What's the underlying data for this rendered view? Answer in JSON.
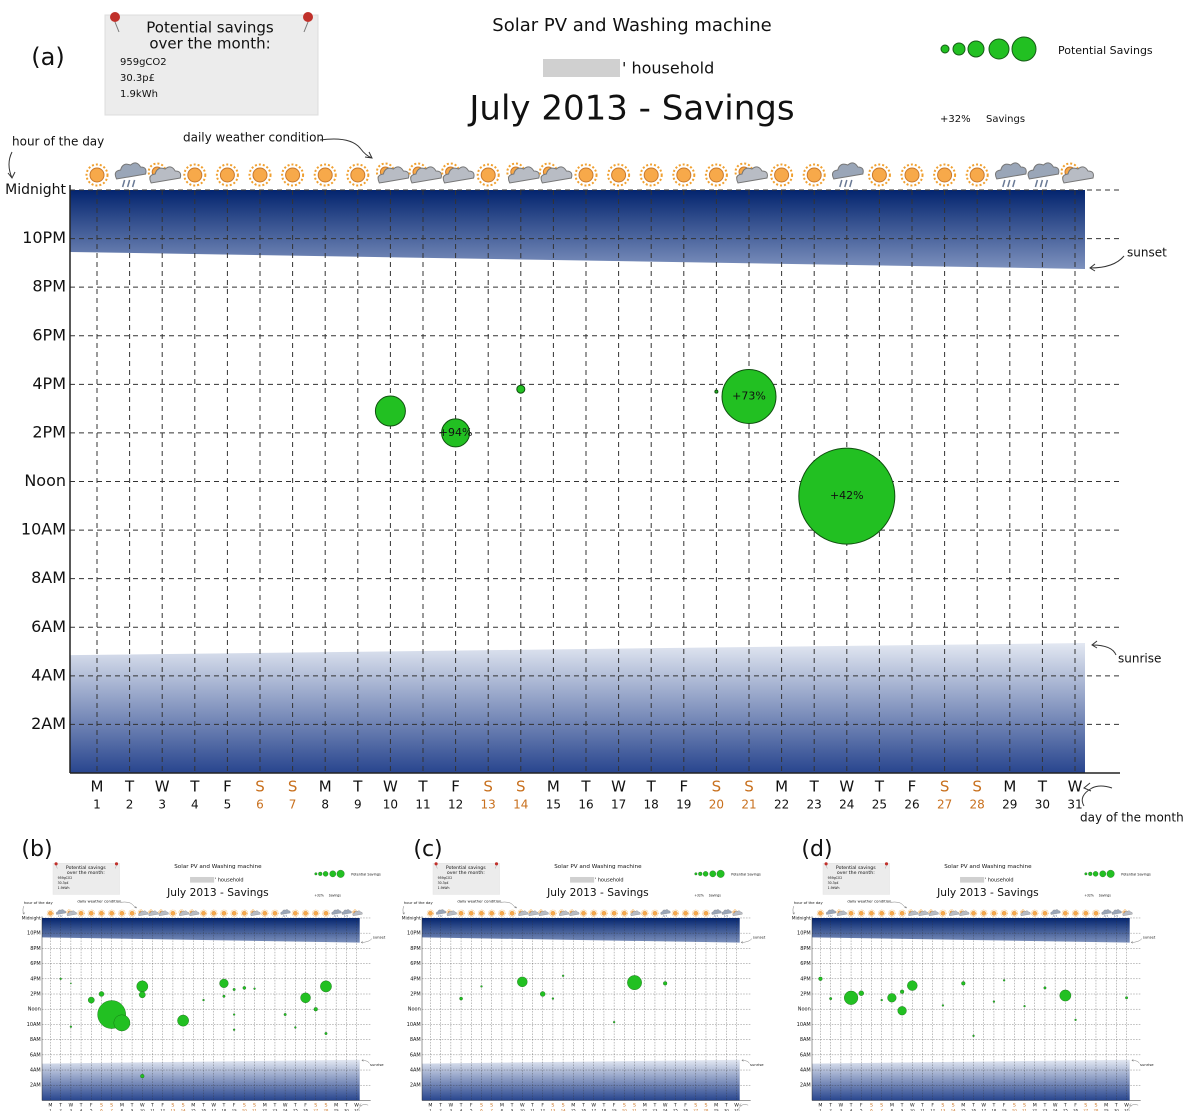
{
  "chart_data": {
    "type": "bubble",
    "subtitle": "Solar PV and Washing machine",
    "household": "' household",
    "title": "July 2013 - Savings",
    "note": {
      "heading": [
        "Potential savings",
        "over the month:"
      ],
      "lines": [
        "959gCO2",
        "30.3p£",
        "1.9kWh"
      ]
    },
    "legend": {
      "size_label": "Potential Savings",
      "example": "+32%",
      "example_label": "Savings"
    },
    "annotations": {
      "hours": "hour of the day",
      "weather": "daily weather condition",
      "sunset": "sunset",
      "sunrise": "sunrise",
      "days": "day of the month"
    },
    "days": [
      1,
      2,
      3,
      4,
      5,
      6,
      7,
      8,
      9,
      10,
      11,
      12,
      13,
      14,
      15,
      16,
      17,
      18,
      19,
      20,
      21,
      22,
      23,
      24,
      25,
      26,
      27,
      28,
      29,
      30,
      31
    ],
    "weekdays": [
      "M",
      "T",
      "W",
      "T",
      "F",
      "S",
      "S",
      "M",
      "T",
      "W",
      "T",
      "F",
      "S",
      "S",
      "M",
      "T",
      "W",
      "T",
      "F",
      "S",
      "S",
      "M",
      "T",
      "W",
      "T",
      "F",
      "S",
      "S",
      "M",
      "T",
      "W"
    ],
    "weekend_color": "#c8701e",
    "weather": [
      "sun",
      "storm",
      "cloud",
      "sun",
      "sun",
      "sun",
      "sun",
      "sun",
      "sun",
      "cloud",
      "cloud",
      "cloud",
      "sun",
      "cloud",
      "cloud",
      "sun",
      "sun",
      "sun",
      "sun",
      "sun",
      "cloud",
      "sun",
      "sun",
      "storm",
      "sun",
      "sun",
      "sun",
      "sun",
      "storm",
      "storm",
      "cloud"
    ],
    "xlim": [
      1,
      31
    ],
    "ylim": [
      0,
      24
    ],
    "yticks": [
      {
        "value": 2,
        "label": "2AM"
      },
      {
        "value": 4,
        "label": "4AM"
      },
      {
        "value": 6,
        "label": "6AM"
      },
      {
        "value": 8,
        "label": "8AM"
      },
      {
        "value": 10,
        "label": "10AM"
      },
      {
        "value": 12,
        "label": "Noon"
      },
      {
        "value": 14,
        "label": "2PM"
      },
      {
        "value": 16,
        "label": "4PM"
      },
      {
        "value": 18,
        "label": "6PM"
      },
      {
        "value": 20,
        "label": "8PM"
      },
      {
        "value": 22,
        "label": "10PM"
      },
      {
        "value": 24,
        "label": "Midnight"
      }
    ],
    "grid": true,
    "sunrise": [
      4.85,
      5.35
    ],
    "sunset": [
      21.45,
      20.75
    ],
    "color": "#22c022",
    "panels": [
      {
        "label": "(a)",
        "x": [
          10,
          12,
          14,
          20,
          21,
          24
        ],
        "values": [
          14.9,
          14.0,
          15.8,
          15.7,
          15.5,
          11.4
        ],
        "sizes": [
          15,
          14,
          4,
          1.5,
          27,
          48
        ],
        "value_labels": [
          null,
          "+94%",
          null,
          null,
          "+73%",
          "+42%"
        ]
      },
      {
        "label": "(b)",
        "x": [
          2,
          3,
          3,
          5,
          6,
          7,
          8,
          10,
          10,
          10,
          14,
          16,
          18,
          18,
          19,
          19,
          19,
          20,
          21,
          24,
          25,
          26,
          27,
          28,
          28
        ],
        "values": [
          16.0,
          15.4,
          9.7,
          13.2,
          14.0,
          11.3,
          10.2,
          15.0,
          13.9,
          3.2,
          10.5,
          13.2,
          15.4,
          13.7,
          14.6,
          11.3,
          9.3,
          14.8,
          14.7,
          11.3,
          9.6,
          13.5,
          12.0,
          15.0,
          8.8
        ],
        "sizes": [
          3,
          2,
          3,
          10,
          8,
          45,
          26,
          18,
          10,
          6,
          18,
          3,
          14,
          4,
          4,
          3,
          3,
          5,
          3,
          4,
          3,
          16,
          6,
          18,
          4
        ]
      },
      {
        "label": "(c)",
        "x": [
          4,
          6,
          10,
          12,
          13,
          14,
          19,
          21,
          24
        ],
        "values": [
          13.4,
          15.0,
          15.6,
          14.0,
          13.4,
          16.4,
          10.3,
          15.5,
          15.4
        ],
        "sizes": [
          5,
          3,
          16,
          8,
          3,
          3,
          3,
          23,
          6
        ]
      },
      {
        "label": "(d)",
        "x": [
          1,
          2,
          4,
          5,
          7,
          8,
          9,
          9,
          10,
          13,
          15,
          16,
          18,
          19,
          21,
          23,
          25,
          26,
          31
        ],
        "values": [
          16.0,
          13.4,
          13.5,
          14.1,
          13.2,
          13.5,
          11.8,
          14.3,
          15.1,
          12.5,
          15.4,
          8.5,
          13.0,
          15.8,
          12.4,
          14.8,
          13.8,
          10.6,
          13.5
        ],
        "sizes": [
          6,
          4,
          22,
          8,
          3,
          14,
          14,
          6,
          16,
          3,
          6,
          3,
          3,
          3,
          3,
          4,
          18,
          3,
          4
        ]
      }
    ]
  }
}
